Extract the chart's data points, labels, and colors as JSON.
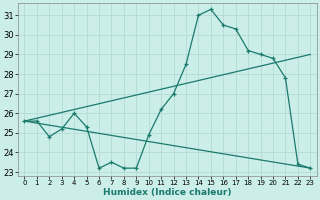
{
  "xlabel": "Humidex (Indice chaleur)",
  "background_color": "#cceee8",
  "grid_color": "#b8ddd8",
  "line_color": "#1a7a6e",
  "xlim": [
    -0.5,
    23.5
  ],
  "ylim": [
    22.8,
    31.6
  ],
  "yticks": [
    23,
    24,
    25,
    26,
    27,
    28,
    29,
    30,
    31
  ],
  "xticks": [
    0,
    1,
    2,
    3,
    4,
    5,
    6,
    7,
    8,
    9,
    10,
    11,
    12,
    13,
    14,
    15,
    16,
    17,
    18,
    19,
    20,
    21,
    22,
    23
  ],
  "series_main": {
    "x": [
      0,
      1,
      2,
      3,
      4,
      5,
      6,
      7,
      8,
      9,
      10,
      11,
      12,
      13,
      14,
      15,
      16,
      17,
      18,
      19,
      20,
      21,
      22,
      23
    ],
    "y": [
      25.6,
      25.6,
      24.8,
      25.2,
      26.0,
      25.3,
      23.2,
      23.5,
      23.2,
      23.2,
      24.9,
      26.2,
      27.0,
      28.5,
      31.0,
      31.3,
      30.5,
      30.3,
      29.2,
      29.0,
      28.8,
      27.8,
      23.4,
      23.2
    ]
  },
  "series_up": {
    "x": [
      0,
      23
    ],
    "y": [
      25.6,
      29.0
    ]
  },
  "series_down": {
    "x": [
      0,
      23
    ],
    "y": [
      25.6,
      23.2
    ]
  }
}
